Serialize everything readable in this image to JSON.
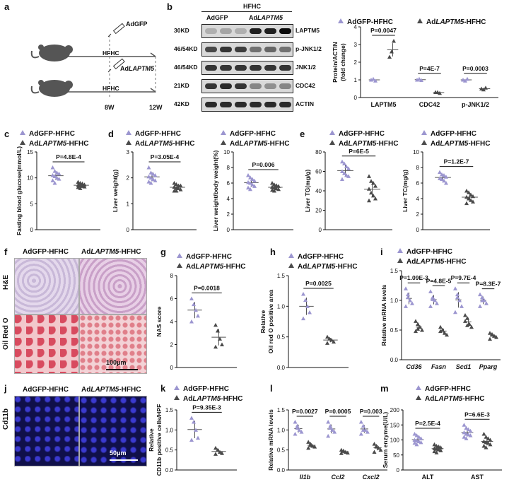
{
  "panels": {
    "a": "a",
    "b": "b",
    "c": "c",
    "d": "d",
    "e": "e",
    "f": "f",
    "g": "g",
    "h": "h",
    "i": "i",
    "j": "j",
    "k": "k",
    "l": "l",
    "m": "m"
  },
  "legend": {
    "ctrl": "AdGFP-HFHC",
    "ko_prefix": "Ad",
    "ko_gene": "LAPTM5",
    "ko_suffix": "-HFHC"
  },
  "panel_a": {
    "label1_prefix": "Ad",
    "label1_gene": "GFP",
    "label2_prefix": "Ad",
    "label2_gene": "LAPTM5",
    "diet": "HFHC",
    "t8": "8W",
    "t12": "12W"
  },
  "panel_b": {
    "group_header": "HFHC",
    "g1": "AdGFP",
    "g2_prefix": "Ad",
    "g2_gene": "LAPTM5",
    "mw": [
      "30KD",
      "46/54KD",
      "46/54KD",
      "21KD",
      "42KD"
    ],
    "proteins": [
      "LAPTM5",
      "p-JNK1/2",
      "JNK1/2",
      "CDC42",
      "ACTIN"
    ]
  },
  "chart_data": [
    {
      "panel": "b",
      "type": "scatter",
      "ylabel": "Protein/ACTIN\n(fold change)",
      "ylim": [
        0,
        4
      ],
      "yticks": [
        "0",
        "1",
        "2",
        "3",
        "4"
      ],
      "categories": [
        "LAPTM5",
        "CDC42",
        "p-JNK1/2"
      ],
      "pvalues": [
        "P=0.0047",
        "P=4E-7",
        "P=0.0003"
      ],
      "series": [
        {
          "name": "AdGFP-HFHC",
          "values": [
            [
              1.0,
              1.05,
              0.95
            ],
            [
              1.0,
              1.05,
              0.98
            ],
            [
              1.0,
              0.95,
              1.05
            ]
          ]
        },
        {
          "name": "AdLAPTM5-HFHC",
          "values": [
            [
              2.3,
              2.6,
              3.2
            ],
            [
              0.3,
              0.3,
              0.25
            ],
            [
              0.5,
              0.45,
              0.55
            ]
          ]
        }
      ]
    },
    {
      "panel": "c",
      "type": "scatter",
      "ylabel": "Fasting blood glucose(mmol/L)",
      "ylim": [
        0,
        15
      ],
      "yticks": [
        "0",
        "5",
        "10",
        "15"
      ],
      "pvalue": "P=4.8E-4",
      "series": [
        {
          "name": "AdGFP-HFHC",
          "values": [
            12.0,
            11.3,
            11.0,
            10.8,
            10.5,
            10.3,
            10.0,
            9.8,
            9.5,
            9.0
          ]
        },
        {
          "name": "AdLAPTM5-HFHC",
          "values": [
            9.2,
            9.0,
            8.9,
            8.7,
            8.6,
            8.5,
            8.4,
            8.3,
            8.2,
            8.0
          ]
        }
      ]
    },
    {
      "panel": "d1",
      "type": "scatter",
      "ylabel": "Liver weight(g)",
      "ylim": [
        0,
        3
      ],
      "yticks": [
        "0",
        "1",
        "2",
        "3"
      ],
      "pvalue": "P=3.05E-4",
      "series": [
        {
          "name": "AdGFP-HFHC",
          "values": [
            2.4,
            2.2,
            2.15,
            2.1,
            2.05,
            2.0,
            1.95,
            1.9,
            1.85,
            1.8
          ]
        },
        {
          "name": "AdLAPTM5-HFHC",
          "values": [
            1.8,
            1.75,
            1.7,
            1.7,
            1.65,
            1.6,
            1.6,
            1.55,
            1.5,
            1.5
          ]
        }
      ]
    },
    {
      "panel": "d2",
      "type": "scatter",
      "ylabel": "Liver weight/body weight(%)",
      "ylim": [
        0,
        10
      ],
      "yticks": [
        "0",
        "2",
        "4",
        "6",
        "8",
        "10"
      ],
      "pvalue": "P=0.006",
      "series": [
        {
          "name": "AdGFP-HFHC",
          "values": [
            7.0,
            6.7,
            6.5,
            6.3,
            6.1,
            6.0,
            5.8,
            5.6,
            5.4,
            5.2
          ]
        },
        {
          "name": "AdLAPTM5-HFHC",
          "values": [
            6.0,
            5.8,
            5.7,
            5.6,
            5.5,
            5.4,
            5.3,
            5.2,
            5.1,
            5.0
          ]
        }
      ]
    },
    {
      "panel": "e1",
      "type": "scatter",
      "ylabel": "Liver TG(mg/g)",
      "ylim": [
        0,
        80
      ],
      "yticks": [
        "0",
        "20",
        "40",
        "60",
        "80"
      ],
      "pvalue": "P=6E-5",
      "series": [
        {
          "name": "AdGFP-HFHC",
          "values": [
            70,
            68,
            65,
            63,
            60,
            58,
            56,
            55,
            52
          ]
        },
        {
          "name": "AdLAPTM5-HFHC",
          "values": [
            55,
            50,
            48,
            45,
            42,
            38,
            35,
            32,
            30
          ]
        }
      ]
    },
    {
      "panel": "e2",
      "type": "scatter",
      "ylabel": "Liver TC(mg/g)",
      "ylim": [
        0,
        10
      ],
      "yticks": [
        "0",
        "2",
        "4",
        "6",
        "8",
        "10"
      ],
      "pvalue": "P=1.2E-7",
      "series": [
        {
          "name": "AdGFP-HFHC",
          "values": [
            7.4,
            7.1,
            7.0,
            6.8,
            6.6,
            6.5,
            6.3,
            6.0
          ]
        },
        {
          "name": "AdLAPTM5-HFHC",
          "values": [
            5.0,
            4.8,
            4.5,
            4.3,
            4.2,
            4.0,
            3.8,
            3.6,
            3.4
          ]
        }
      ]
    },
    {
      "panel": "g",
      "type": "scatter",
      "ylabel": "NAS score",
      "ylim": [
        0,
        8
      ],
      "yticks": [
        "0",
        "2",
        "4",
        "6",
        "8"
      ],
      "pvalue": "P=0.0018",
      "series": [
        {
          "name": "AdGFP-HFHC",
          "values": [
            6.0,
            5.5,
            5.0,
            4.5,
            4.0
          ]
        },
        {
          "name": "AdLAPTM5-HFHC",
          "values": [
            3.7,
            3.2,
            2.5,
            2.0,
            1.8
          ]
        }
      ]
    },
    {
      "panel": "h",
      "type": "scatter",
      "ylabel": "Relative\nOil red O positive area",
      "ylim": [
        0,
        1.5
      ],
      "yticks": [
        "0.0",
        "0.5",
        "1.0",
        "1.5"
      ],
      "pvalue": "P=0.0025",
      "series": [
        {
          "name": "AdGFP-HFHC",
          "values": [
            1.2,
            1.1,
            1.0,
            0.9,
            0.8
          ]
        },
        {
          "name": "AdLAPTM5-HFHC",
          "values": [
            0.5,
            0.47,
            0.45,
            0.42,
            0.4
          ]
        }
      ]
    },
    {
      "panel": "i",
      "type": "scatter",
      "ylabel": "Relative mRNA levels",
      "ylim": [
        0,
        1.5
      ],
      "yticks": [
        "0.0",
        "0.5",
        "1.0",
        "1.5"
      ],
      "categories": [
        "Cd36",
        "Fasn",
        "Scd1",
        "Pparg"
      ],
      "pvalues": [
        "P=1.09E-3",
        "P=4.8E-5",
        "P=9.7E-4",
        "P=8.3E-7"
      ],
      "series": [
        {
          "name": "AdGFP-HFHC",
          "values": [
            [
              1.2,
              1.1,
              1.0,
              0.95,
              0.9,
              1.05
            ],
            [
              1.15,
              1.05,
              1.0,
              0.95,
              0.9,
              1.02
            ],
            [
              1.2,
              1.1,
              1.0,
              0.9,
              0.8,
              1.05
            ],
            [
              1.1,
              1.05,
              1.0,
              0.95,
              0.9,
              1.0
            ]
          ]
        },
        {
          "name": "AdLAPTM5-HFHC",
          "values": [
            [
              0.65,
              0.6,
              0.55,
              0.5,
              0.48,
              0.52
            ],
            [
              0.55,
              0.5,
              0.45,
              0.42,
              0.48,
              0.5
            ],
            [
              0.75,
              0.7,
              0.6,
              0.55,
              0.65,
              0.58
            ],
            [
              0.45,
              0.42,
              0.4,
              0.38,
              0.35,
              0.43
            ]
          ]
        }
      ]
    },
    {
      "panel": "k",
      "type": "scatter",
      "ylabel": "Relative\nCD11b positive cells/HPF",
      "ylim": [
        0,
        1.5
      ],
      "yticks": [
        "0.0",
        "0.5",
        "1.0",
        "1.5"
      ],
      "pvalue": "P=9.35E-3",
      "series": [
        {
          "name": "AdGFP-HFHC",
          "values": [
            1.3,
            1.2,
            1.0,
            0.8,
            0.75
          ]
        },
        {
          "name": "AdLAPTM5-HFHC",
          "values": [
            0.55,
            0.5,
            0.45,
            0.42,
            0.4
          ]
        }
      ]
    },
    {
      "panel": "l",
      "type": "scatter",
      "ylabel": "Relative mRNA levels",
      "ylim": [
        0,
        1.5
      ],
      "yticks": [
        "0.0",
        "0.5",
        "1.0",
        "1.5"
      ],
      "categories": [
        "Il1b",
        "Ccl2",
        "Cxcl2"
      ],
      "pvalues": [
        "P=0.0027",
        "P=0.0005",
        "P=0.003"
      ],
      "series": [
        {
          "name": "AdGFP-HFHC",
          "values": [
            [
              1.2,
              1.1,
              1.0,
              0.95,
              0.9,
              1.05
            ],
            [
              1.2,
              1.1,
              1.0,
              0.95,
              0.85,
              1.05
            ],
            [
              1.2,
              1.1,
              1.0,
              0.95,
              0.9,
              1.0
            ]
          ]
        },
        {
          "name": "AdLAPTM5-HFHC",
          "values": [
            [
              0.7,
              0.65,
              0.6,
              0.58,
              0.55,
              0.62
            ],
            [
              0.5,
              0.47,
              0.45,
              0.43,
              0.42,
              0.48
            ],
            [
              0.65,
              0.6,
              0.55,
              0.5,
              0.45,
              0.58
            ]
          ]
        }
      ]
    },
    {
      "panel": "m",
      "type": "scatter",
      "ylabel": "Serum enzyme(U/L)",
      "ylim": [
        0,
        200
      ],
      "yticks": [
        "0",
        "50",
        "100",
        "150",
        "200"
      ],
      "categories": [
        "ALT",
        "AST"
      ],
      "pvalues": [
        "P=2.5E-4",
        "P=6.6E-3"
      ],
      "series": [
        {
          "name": "AdGFP-HFHC",
          "values": [
            [
              120,
              115,
              110,
              105,
              100,
              98,
              95,
              92,
              90,
              85
            ],
            [
              150,
              140,
              135,
              130,
              125,
              120,
              118,
              115,
              110,
              105
            ]
          ]
        },
        {
          "name": "AdLAPTM5-HFHC",
          "values": [
            [
              85,
              80,
              78,
              75,
              72,
              70,
              68,
              65,
              62,
              58
            ],
            [
              120,
              110,
              105,
              100,
              95,
              92,
              90,
              85,
              80,
              75
            ]
          ]
        }
      ]
    }
  ],
  "panel_f": {
    "col1": "AdGFP-HFHC",
    "col2_prefix": "Ad",
    "col2_gene": "LAPTM5",
    "col2_suffix": "-HFHC",
    "row1": "H&E",
    "row2": "Oil Red O",
    "scale": "100μm"
  },
  "panel_j": {
    "col1": "AdGFP-HFHC",
    "col2_prefix": "Ad",
    "col2_gene": "LAPTM5",
    "col2_suffix": "-HFHC",
    "row": "Cd11b",
    "scale": "50μm"
  },
  "colors": {
    "ctrl": "#9c96d0",
    "ko": "#4a4a4a"
  }
}
